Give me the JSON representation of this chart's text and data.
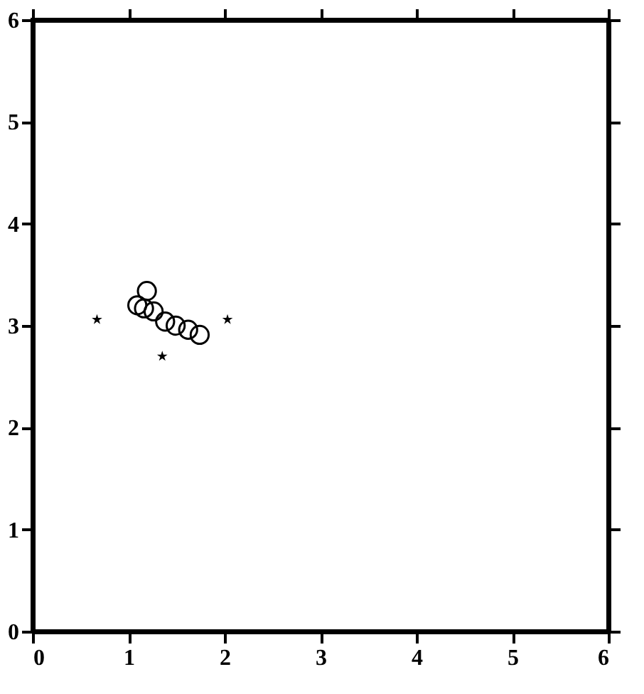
{
  "chart_data": {
    "type": "scatter",
    "xlim": [
      0,
      6
    ],
    "ylim": [
      0,
      6
    ],
    "xticks": [
      0,
      1,
      2,
      3,
      4,
      5,
      6
    ],
    "yticks": [
      0,
      1,
      2,
      3,
      4,
      5,
      6
    ],
    "grid": false,
    "series": [
      {
        "color": "#000000",
        "marker": "circle",
        "x": [
          1.19,
          1.09,
          1.16,
          1.26,
          1.38,
          1.49,
          1.62,
          1.74
        ],
        "values": [
          3.34,
          3.2,
          3.17,
          3.14,
          3.04,
          3.0,
          2.96,
          2.91
        ]
      },
      {
        "color": "#000000",
        "marker": "star",
        "x": [
          0.67,
          2.03,
          1.35
        ],
        "values": [
          3.06,
          3.06,
          2.7
        ]
      }
    ]
  }
}
